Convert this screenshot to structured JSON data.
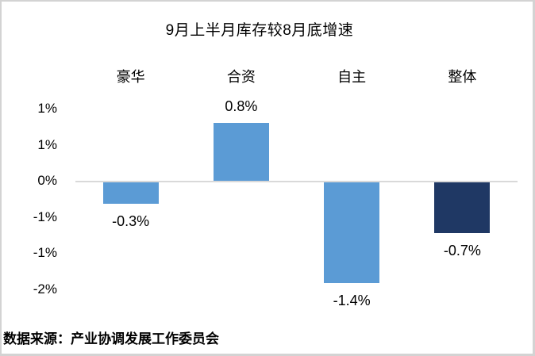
{
  "title": "9月上半月库存较8月底增速",
  "source": "数据来源：产业协调发展工作委员会",
  "colors": {
    "bar_default": "#5B9BD5",
    "bar_total": "#1F3864",
    "zero_line": "#D9D9D9",
    "text": "#000000",
    "frame_border": "#D3D3D3"
  },
  "chart_data": {
    "type": "bar",
    "title": "9月上半月库存较8月底增速",
    "categories": [
      "豪华",
      "合资",
      "自主",
      "整体"
    ],
    "values": [
      -0.3,
      0.8,
      -1.4,
      -0.7
    ],
    "value_labels": [
      "-0.3%",
      "0.8%",
      "-1.4%",
      "-0.7%"
    ],
    "bar_colors": [
      "#5B9BD5",
      "#5B9BD5",
      "#5B9BD5",
      "#1F3864"
    ],
    "xlabel": "",
    "ylabel": "",
    "unit": "%",
    "grid": false,
    "legend": null,
    "y_axis": {
      "min": -1.5,
      "max": 1.0,
      "tick_interval": 0.5,
      "tick_labels": [
        "1%",
        "1%",
        "0%",
        "-1%",
        "-1%",
        "-2%"
      ],
      "note": "labels rounded to 0 decimals, hence duplicates"
    },
    "source_note": "数据来源：产业协调发展工作委员会"
  }
}
